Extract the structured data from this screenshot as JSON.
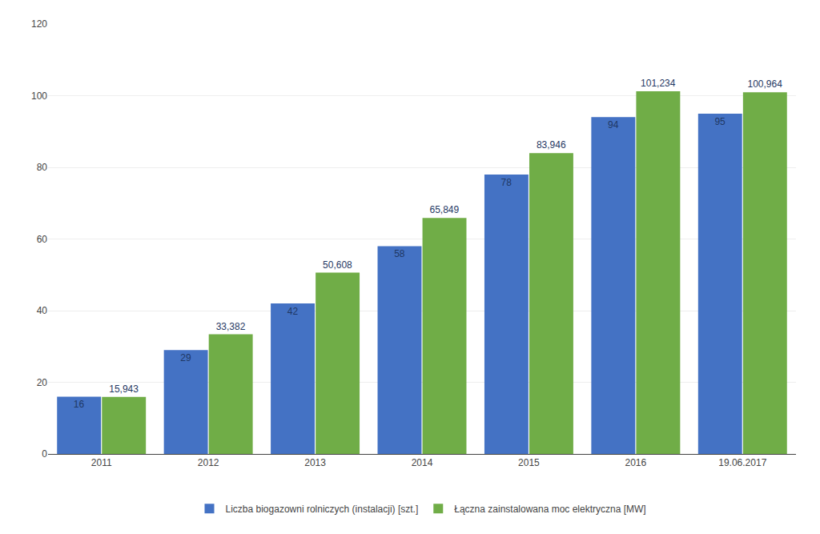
{
  "chart_data": {
    "type": "bar",
    "categories": [
      "2011",
      "2012",
      "2013",
      "2014",
      "2015",
      "2016",
      "19.06.2017"
    ],
    "series": [
      {
        "name": "Liczba biogazowni rolniczych (instalacji) [szt.]",
        "color": "#4472C4",
        "values": [
          16,
          29,
          42,
          58,
          78,
          94,
          95
        ]
      },
      {
        "name": "Łączna zainstalowana moc elektryczna [MW]",
        "color": "#70AD47",
        "values": [
          15.943,
          33.382,
          50.608,
          65.849,
          83.946,
          101.234,
          100.964
        ],
        "value_labels": [
          "15,943",
          "33,382",
          "50,608",
          "65,849",
          "83,946",
          "101,234",
          "100,964"
        ]
      }
    ],
    "ylim": [
      0,
      120
    ],
    "yticks": [
      0,
      20,
      40,
      60,
      80,
      100,
      120
    ],
    "grid": true,
    "legend": "bottom",
    "data_labels": true
  }
}
